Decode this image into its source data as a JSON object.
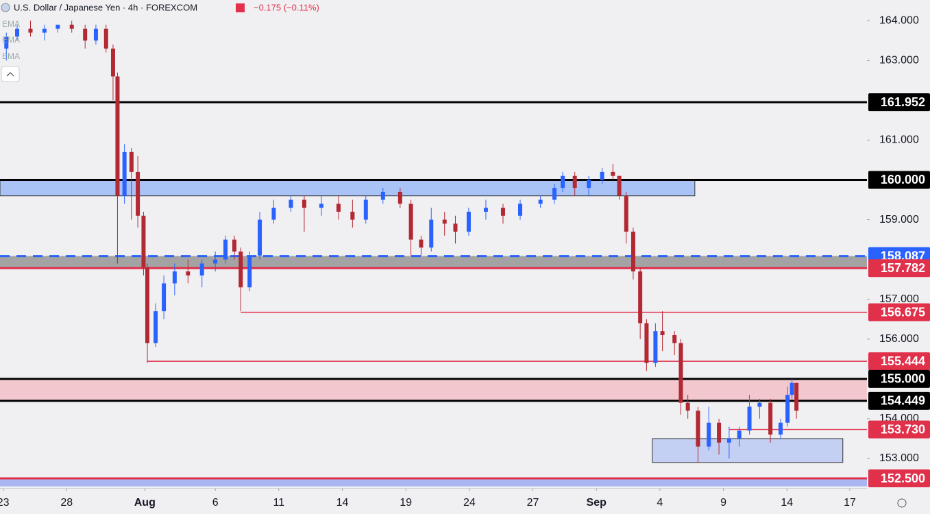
{
  "header": {
    "title": "U.S. Dollar / Japanese Yen · 4h · FOREXCOM",
    "change": "−0.175 (−0.11%)",
    "indicators": [
      "EMA",
      "EMA",
      "EMA"
    ]
  },
  "chart_data": {
    "type": "candlestick",
    "x": [
      0.05,
      0.22,
      0.43,
      0.65,
      0.86,
      1.08,
      1.29,
      1.46,
      1.62,
      1.73,
      1.8,
      1.91,
      2.02,
      2.12,
      2.21,
      2.27,
      2.4,
      2.53,
      2.7,
      2.91,
      3.13,
      3.34,
      3.5,
      3.64,
      3.74,
      3.88,
      4.04,
      4.26,
      4.53,
      4.74,
      5.01,
      5.28,
      5.5,
      5.71,
      5.98,
      6.25,
      6.42,
      6.58,
      6.74,
      6.95,
      7.12,
      7.33,
      7.6,
      7.87,
      8.14,
      8.46,
      8.68,
      8.81,
      9.0,
      9.22,
      9.43,
      9.6,
      9.7,
      9.81,
      9.92,
      10.03,
      10.13,
      10.27,
      10.38,
      10.57,
      10.67,
      10.78,
      10.94,
      11.11,
      11.27,
      11.43,
      11.59,
      11.75,
      11.91,
      12.08,
      12.24,
      12.35,
      12.42,
      12.49
    ],
    "open": [
      163.3,
      163.6,
      163.8,
      163.7,
      163.8,
      163.9,
      163.8,
      163.5,
      163.8,
      163.3,
      162.6,
      159.6,
      160.7,
      160.2,
      159.1,
      157.8,
      155.9,
      156.7,
      157.4,
      157.7,
      157.6,
      157.9,
      158.0,
      158.5,
      158.2,
      157.3,
      158.1,
      159.0,
      159.3,
      159.5,
      159.3,
      159.4,
      159.2,
      159.0,
      159.5,
      159.7,
      159.4,
      158.5,
      158.3,
      159.0,
      158.9,
      158.7,
      159.2,
      159.3,
      159.1,
      159.4,
      159.5,
      159.8,
      160.1,
      159.8,
      160.0,
      160.2,
      160.1,
      159.6,
      158.7,
      157.7,
      156.4,
      155.4,
      156.2,
      156.1,
      155.9,
      154.4,
      154.2,
      153.3,
      153.9,
      153.4,
      153.5,
      153.7,
      154.3,
      154.4,
      153.6,
      153.9,
      154.6,
      154.9
    ],
    "high": [
      163.7,
      163.9,
      164.0,
      163.9,
      163.9,
      164.0,
      163.9,
      163.9,
      163.9,
      163.4,
      162.7,
      160.9,
      160.8,
      160.6,
      159.2,
      157.9,
      156.9,
      157.6,
      157.9,
      158.0,
      158.0,
      158.2,
      158.6,
      158.6,
      158.3,
      158.2,
      159.2,
      159.5,
      159.6,
      159.6,
      159.6,
      159.6,
      159.5,
      159.6,
      159.8,
      159.8,
      159.5,
      158.6,
      159.3,
      159.2,
      159.1,
      159.3,
      159.5,
      159.4,
      159.5,
      159.6,
      159.9,
      160.2,
      160.2,
      160.1,
      160.3,
      160.4,
      160.1,
      159.7,
      158.8,
      157.8,
      156.5,
      156.4,
      156.7,
      156.2,
      156.0,
      154.6,
      154.3,
      154.3,
      154.0,
      153.8,
      153.8,
      154.6,
      154.5,
      154.5,
      154.0,
      154.8,
      155.0,
      154.9
    ],
    "low": [
      163.0,
      163.5,
      163.6,
      163.5,
      163.7,
      163.7,
      163.3,
      163.4,
      163.2,
      162.0,
      157.9,
      159.4,
      159.0,
      158.8,
      157.6,
      155.4,
      155.8,
      156.5,
      157.1,
      157.4,
      157.3,
      157.7,
      157.9,
      158.0,
      156.7,
      157.2,
      158.0,
      158.9,
      159.2,
      158.7,
      159.1,
      159.0,
      158.8,
      158.9,
      159.4,
      159.3,
      158.1,
      158.1,
      158.2,
      158.6,
      158.4,
      158.6,
      159.0,
      158.9,
      159.0,
      159.3,
      159.4,
      159.7,
      159.6,
      159.6,
      159.9,
      160.0,
      159.5,
      158.4,
      157.5,
      156.0,
      155.2,
      155.3,
      155.7,
      155.6,
      154.1,
      154.0,
      152.9,
      153.2,
      153.1,
      153.0,
      153.3,
      153.6,
      154.0,
      153.4,
      153.5,
      153.8,
      154.5,
      154.0
    ],
    "close": [
      163.6,
      163.8,
      163.7,
      163.8,
      163.9,
      163.8,
      163.5,
      163.8,
      163.3,
      162.6,
      159.6,
      160.7,
      160.2,
      159.1,
      157.8,
      155.9,
      156.7,
      157.4,
      157.7,
      157.6,
      157.9,
      158.0,
      158.5,
      158.2,
      157.3,
      158.1,
      159.0,
      159.3,
      159.5,
      159.3,
      159.4,
      159.2,
      159.0,
      159.5,
      159.7,
      159.4,
      158.5,
      158.3,
      159.0,
      158.9,
      158.7,
      159.2,
      159.3,
      159.1,
      159.4,
      159.5,
      159.8,
      160.1,
      159.8,
      160.0,
      160.2,
      160.1,
      159.6,
      158.7,
      157.7,
      156.4,
      155.4,
      156.2,
      156.1,
      155.9,
      154.4,
      154.2,
      153.3,
      153.9,
      153.4,
      153.5,
      153.7,
      154.3,
      154.4,
      153.6,
      153.9,
      154.6,
      154.9,
      154.2
    ],
    "up_color": "#2962ff",
    "down_color": "#b22833",
    "xlim": [
      -0.05,
      13.6
    ],
    "ylim": [
      152.26,
      164.52
    ],
    "xticks": [
      {
        "value": 0,
        "label": "23"
      },
      {
        "value": 1,
        "label": "28"
      },
      {
        "value": 2.23,
        "label": "Aug"
      },
      {
        "value": 3.34,
        "label": "6"
      },
      {
        "value": 4.34,
        "label": "11"
      },
      {
        "value": 5.34,
        "label": "14"
      },
      {
        "value": 6.34,
        "label": "19"
      },
      {
        "value": 7.34,
        "label": "24"
      },
      {
        "value": 8.34,
        "label": "27"
      },
      {
        "value": 9.34,
        "label": "Sep"
      },
      {
        "value": 10.34,
        "label": "4"
      },
      {
        "value": 11.34,
        "label": "9"
      },
      {
        "value": 12.34,
        "label": "14"
      },
      {
        "value": 13.33,
        "label": "17"
      }
    ],
    "yticks": [
      {
        "value": 164,
        "label": "164.000"
      },
      {
        "value": 163,
        "label": "163.000"
      },
      {
        "value": 161,
        "label": "161.000"
      },
      {
        "value": 159,
        "label": "159.000"
      },
      {
        "value": 157,
        "label": "157.000"
      },
      {
        "value": 156,
        "label": "156.000"
      },
      {
        "value": 154,
        "label": "154.000"
      },
      {
        "value": 153,
        "label": "153.000"
      }
    ],
    "zones": [
      {
        "low": 159.6,
        "high": 160.0,
        "x_end": 10.89,
        "color": "#aac3f6"
      },
      {
        "low": 157.782,
        "high": 158.087,
        "color": "#a3a3a3"
      },
      {
        "low": 154.449,
        "high": 155.0,
        "color": "#f2c8ce"
      },
      {
        "low": 152.9,
        "high": 153.5,
        "x_start": 10.22,
        "x_end": 13.22,
        "color": "#c3cff3"
      },
      {
        "low": 152.3,
        "high": 152.5,
        "color": "#a9b6f2"
      }
    ],
    "levels": [
      {
        "value": 161.952,
        "label": "161.952",
        "color": "#000000",
        "style": "solid"
      },
      {
        "value": 160.0,
        "label": "160.000",
        "color": "#000000",
        "style": "solid"
      },
      {
        "value": 158.087,
        "label": "158.087",
        "color": "#2962ff",
        "style": "dashed"
      },
      {
        "value": 157.782,
        "label": "157.782",
        "color": "#e0304a",
        "style": "solid"
      },
      {
        "value": 156.675,
        "label": "156.675",
        "color": "#e0304a",
        "style": "thin",
        "x_start": 3.74
      },
      {
        "value": 155.444,
        "label": "155.444",
        "color": "#e0304a",
        "style": "thin",
        "x_start": 2.27
      },
      {
        "value": 155.0,
        "label": "155.000",
        "color": "#000000",
        "style": "solid"
      },
      {
        "value": 154.449,
        "label": "154.449",
        "color": "#000000",
        "style": "solid"
      },
      {
        "value": 153.73,
        "label": "153.730",
        "color": "#e0304a",
        "style": "thin",
        "x_start": 11.43
      },
      {
        "value": 152.5,
        "label": "152.500",
        "color": "#e0304a",
        "style": "solid"
      }
    ]
  }
}
